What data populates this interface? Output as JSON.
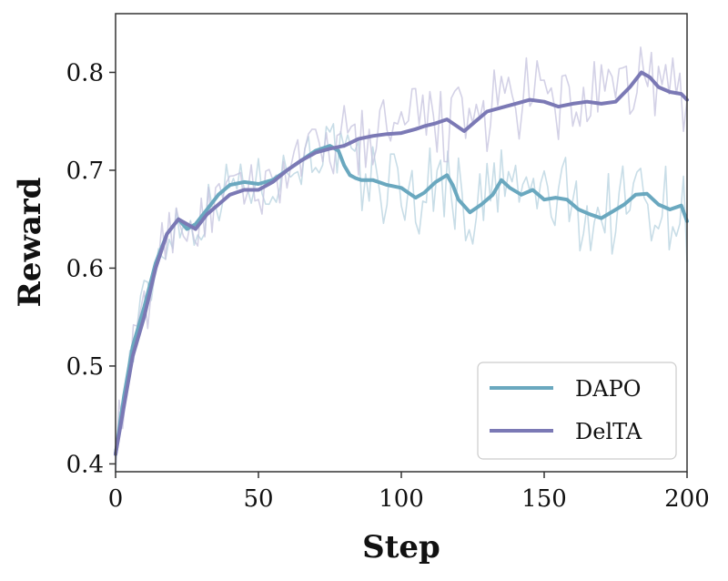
{
  "chart_data": {
    "type": "line",
    "title": "",
    "xlabel": "Step",
    "ylabel": "Reward",
    "xlim": [
      0,
      200
    ],
    "ylim": [
      0.392,
      0.86
    ],
    "xticks": [
      0,
      50,
      100,
      150,
      200
    ],
    "yticks": [
      0.4,
      0.5,
      0.6,
      0.7,
      0.8
    ],
    "xtick_labels": [
      "0",
      "50",
      "100",
      "150",
      "200"
    ],
    "ytick_labels": [
      "0.4",
      "0.5",
      "0.6",
      "0.7",
      "0.8"
    ],
    "grid": false,
    "legend_position": "bottom-right",
    "series": [
      {
        "name": "DAPO",
        "color": "#6aa8bf",
        "raw_color": "#b5d1df",
        "x": [
          0,
          3,
          6,
          10,
          14,
          18,
          22,
          25,
          28,
          32,
          36,
          40,
          45,
          50,
          55,
          60,
          65,
          70,
          75,
          78,
          80,
          82,
          84,
          86,
          90,
          95,
          100,
          105,
          108,
          112,
          116,
          118,
          120,
          124,
          128,
          132,
          135,
          138,
          142,
          146,
          150,
          154,
          158,
          162,
          166,
          170,
          174,
          178,
          182,
          186,
          190,
          194,
          198,
          200
        ],
        "y": [
          0.41,
          0.47,
          0.52,
          0.56,
          0.605,
          0.635,
          0.65,
          0.64,
          0.645,
          0.66,
          0.675,
          0.685,
          0.688,
          0.686,
          0.69,
          0.7,
          0.71,
          0.72,
          0.725,
          0.72,
          0.705,
          0.695,
          0.692,
          0.69,
          0.69,
          0.685,
          0.682,
          0.672,
          0.677,
          0.688,
          0.695,
          0.685,
          0.67,
          0.657,
          0.665,
          0.675,
          0.69,
          0.682,
          0.675,
          0.68,
          0.67,
          0.672,
          0.67,
          0.66,
          0.655,
          0.651,
          0.658,
          0.665,
          0.675,
          0.676,
          0.665,
          0.66,
          0.664,
          0.648
        ]
      },
      {
        "name": "DelTA",
        "color": "#7b79b5",
        "raw_color": "#c4c2de",
        "x": [
          0,
          3,
          6,
          10,
          14,
          18,
          22,
          25,
          28,
          32,
          36,
          40,
          45,
          50,
          55,
          60,
          65,
          70,
          75,
          80,
          85,
          90,
          95,
          100,
          105,
          108,
          112,
          116,
          118,
          122,
          126,
          130,
          135,
          140,
          145,
          150,
          155,
          160,
          165,
          170,
          175,
          180,
          184,
          187,
          190,
          194,
          198,
          200
        ],
        "y": [
          0.41,
          0.46,
          0.51,
          0.55,
          0.6,
          0.635,
          0.65,
          0.645,
          0.64,
          0.655,
          0.665,
          0.675,
          0.68,
          0.68,
          0.688,
          0.7,
          0.71,
          0.718,
          0.722,
          0.725,
          0.732,
          0.735,
          0.737,
          0.738,
          0.742,
          0.745,
          0.748,
          0.752,
          0.748,
          0.74,
          0.75,
          0.76,
          0.764,
          0.768,
          0.772,
          0.77,
          0.765,
          0.768,
          0.77,
          0.768,
          0.77,
          0.785,
          0.8,
          0.795,
          0.785,
          0.78,
          0.778,
          0.772
        ]
      }
    ]
  }
}
